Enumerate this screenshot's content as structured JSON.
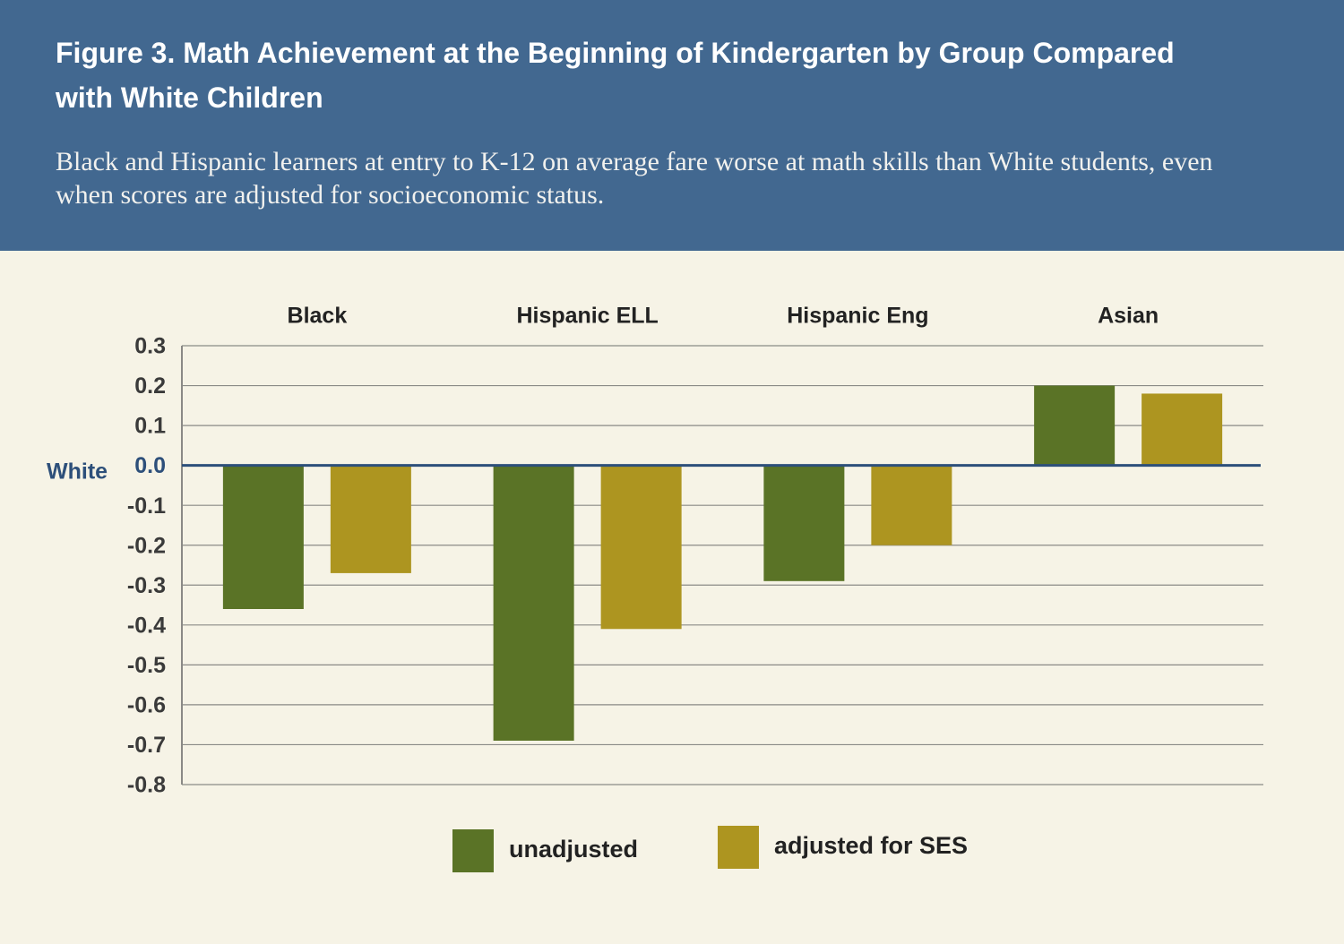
{
  "chart_data": {
    "type": "bar",
    "title": "Figure 3. Math Achievement at the Beginning of Kindergarten by Group Compared with White Children",
    "subtitle": "Black and Hispanic learners at entry to K-12 on average fare worse at math skills than White students, even when scores are adjusted for socioeconomic status.",
    "baseline_label": "White",
    "categories": [
      "Black",
      "Hispanic ELL",
      "Hispanic Eng",
      "Asian"
    ],
    "series": [
      {
        "name": "unadjusted",
        "color": "#5a7326",
        "values": [
          -0.36,
          -0.69,
          -0.29,
          0.2
        ]
      },
      {
        "name": "adjusted for SES",
        "color": "#ad9520",
        "values": [
          -0.27,
          -0.41,
          -0.2,
          0.18
        ]
      }
    ],
    "ylim": [
      -0.8,
      0.3
    ],
    "yticks": [
      0.3,
      0.2,
      0.1,
      {
        "value": 0,
        "label": "0.0"
      },
      -0.1,
      -0.2,
      -0.3,
      -0.4,
      -0.5,
      -0.6,
      -0.7,
      -0.8
    ],
    "grid": true
  }
}
